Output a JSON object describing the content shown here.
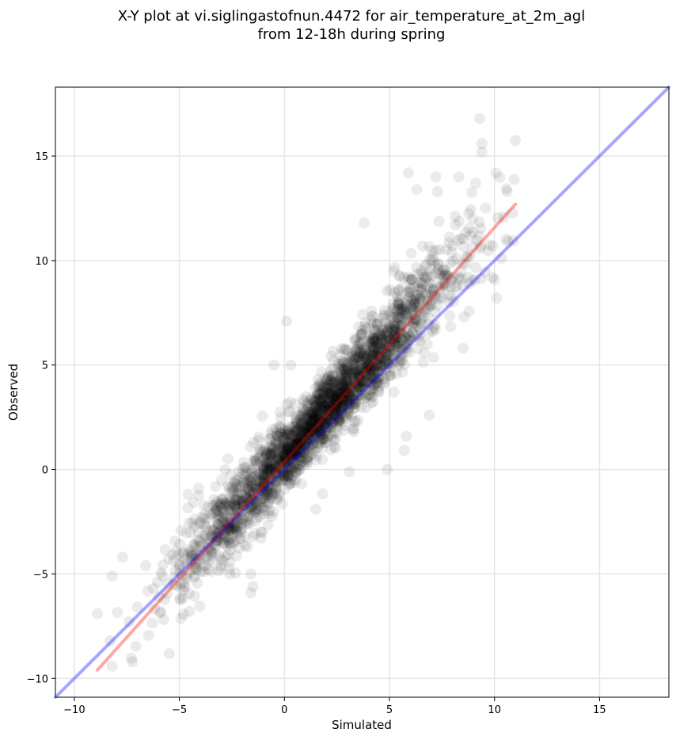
{
  "chart_data": {
    "type": "scatter",
    "title": "X-Y plot at vi.siglingastofnun.4472 for air_temperature_at_2m_agl",
    "subtitle": "from 12-18h during spring",
    "xlabel": "Simulated",
    "ylabel": "Observed",
    "xlim": [
      -10.9,
      18.3
    ],
    "ylim": [
      -10.9,
      18.3
    ],
    "xticks": [
      -10,
      -5,
      0,
      5,
      10,
      15
    ],
    "yticks": [
      -10,
      -5,
      0,
      5,
      10,
      15
    ],
    "xtick_labels": [
      "−10",
      "−5",
      "0",
      "5",
      "10",
      "15"
    ],
    "ytick_labels": [
      "−10",
      "−5",
      "0",
      "5",
      "10",
      "15"
    ],
    "grid": true,
    "point_color": "#000000",
    "point_alpha": 0.08,
    "point_count_approx": 2500,
    "point_distribution": {
      "seed": 4472,
      "x_mean": 1.8,
      "x_sd": 3.3,
      "x_min": -8.8,
      "x_max": 11.0,
      "fit_slope": 1.12,
      "fit_intercept": 0.6,
      "residual_sd": 1.1
    },
    "series": [],
    "lines": [
      {
        "color": "#ff0000",
        "alpha": 0.35,
        "x": [
          -8.9,
          11.0
        ],
        "y": [
          -9.6,
          12.7
        ]
      },
      {
        "color": "#0000ff",
        "alpha": 0.35,
        "x": [
          -10.9,
          18.3
        ],
        "y": [
          -10.9,
          18.3
        ]
      }
    ],
    "outlier_points": [
      {
        "x": 9.3,
        "y": 16.8
      },
      {
        "x": 9.4,
        "y": 15.6
      },
      {
        "x": 9.4,
        "y": 15.2
      },
      {
        "x": 5.9,
        "y": 14.2
      },
      {
        "x": 7.2,
        "y": 14.0
      },
      {
        "x": 8.3,
        "y": 14.0
      },
      {
        "x": 9.1,
        "y": 13.7
      },
      {
        "x": 10.6,
        "y": 13.3
      },
      {
        "x": 6.3,
        "y": 13.4
      },
      {
        "x": 7.3,
        "y": 13.3
      },
      {
        "x": 3.8,
        "y": 11.8
      },
      {
        "x": 10.1,
        "y": 8.2
      },
      {
        "x": 9.9,
        "y": 9.2
      },
      {
        "x": 8.5,
        "y": 5.8
      },
      {
        "x": 6.9,
        "y": 2.6
      },
      {
        "x": 5.8,
        "y": 1.6
      },
      {
        "x": 5.7,
        "y": 0.9
      },
      {
        "x": 0.1,
        "y": 7.1
      },
      {
        "x": -7.7,
        "y": -4.2
      },
      {
        "x": -8.2,
        "y": -5.1
      },
      {
        "x": -6.6,
        "y": -4.6
      },
      {
        "x": -1.5,
        "y": -5.6
      },
      {
        "x": -1.6,
        "y": -5.9
      },
      {
        "x": -1.6,
        "y": -5.0
      },
      {
        "x": -8.9,
        "y": -6.9
      },
      {
        "x": -8.3,
        "y": -8.2
      },
      {
        "x": -5.9,
        "y": -6.8
      },
      {
        "x": -2.6,
        "y": -5.0
      },
      {
        "x": -3.9,
        "y": -4.7
      },
      {
        "x": 1.5,
        "y": -1.9
      },
      {
        "x": 3.1,
        "y": -0.1
      },
      {
        "x": 4.9,
        "y": 0.0
      },
      {
        "x": -0.5,
        "y": 5.0
      },
      {
        "x": 0.3,
        "y": 5.0
      },
      {
        "x": -4.1,
        "y": -3.0
      }
    ]
  }
}
